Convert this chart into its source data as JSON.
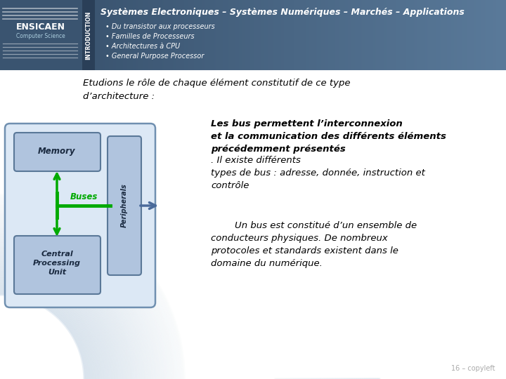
{
  "bg_color": "#ffffff",
  "title_text": "Systèmes Electroniques – Systèmes Numériques – Marchés – Applications",
  "bullets": [
    "Du transistor aux processeurs",
    "Familles de Processeurs",
    "Architectures à CPU",
    "General Purpose Processor"
  ],
  "intro_label": "INTRODUCTION",
  "ensicaen_text": "ENSICAEN",
  "cs_text": "Computer Science",
  "intro_paragraph": "Etudions le rôle de chaque élément constitutif de ce type\nd’architecture :",
  "right_text1_bold": "Les bus permettent l’interconnexion\net la communication des différents éléments\nprécédemment présentés",
  "right_text1_normal": ". Il existe différents\ntypes de bus : adresse, donnée, instruction et\ncontrôle",
  "right_text2": "        Un bus est constitué d’un ensemble de\nconducteurs physiques. De nombreux\nprotocoles et standards existent dans le\ndomaine du numérique.",
  "footer_text": "16 – copyleft",
  "header_dark": "#3a5470",
  "header_mid": "#4a6a8a",
  "sidebar_dark": "#2a3f58",
  "box_fill": "#dce8f5",
  "box_border": "#7090b0",
  "inner_fill": "#b0c4de",
  "inner_border": "#5a7898",
  "bus_color": "#00aa00",
  "arrow_color": "#4a6a9a",
  "text_dark": "#1a2a40"
}
